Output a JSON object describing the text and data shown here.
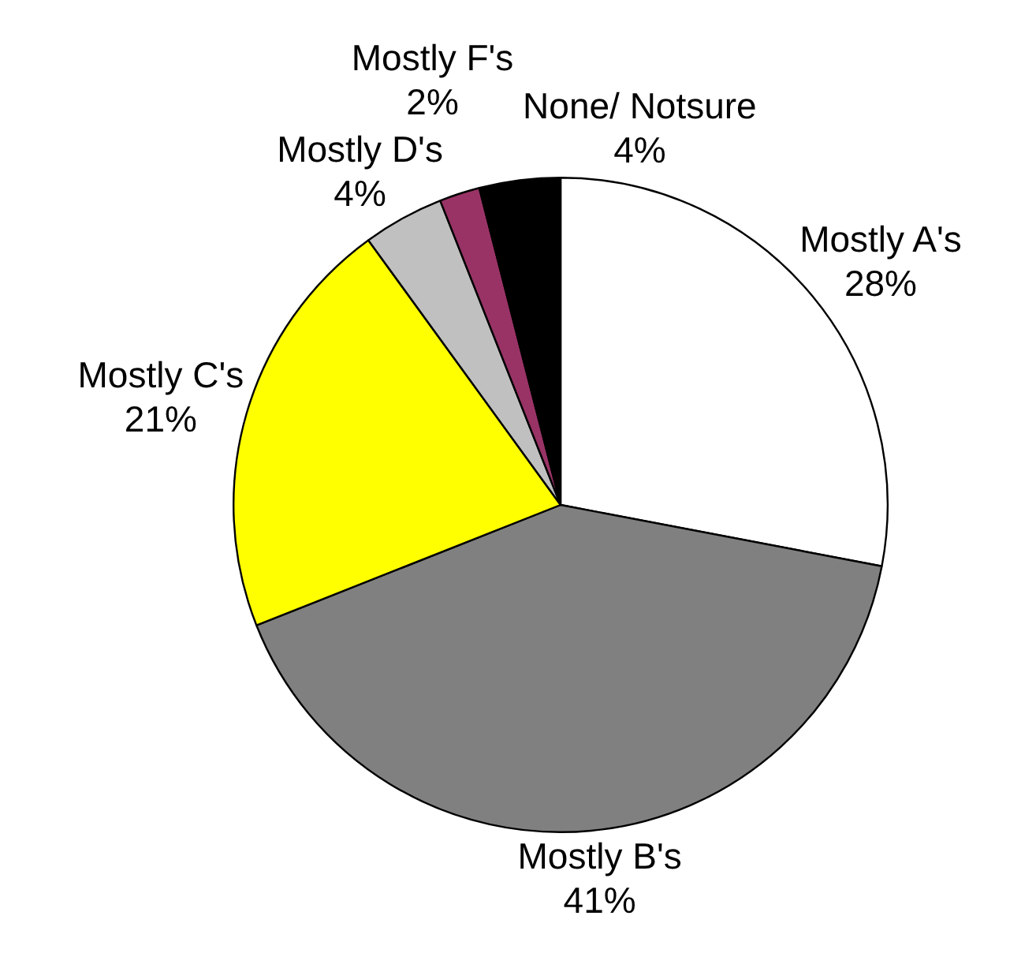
{
  "chart_data": {
    "type": "pie",
    "categories": [
      "Mostly A's",
      "Mostly B's",
      "Mostly C's",
      "Mostly D's",
      "Mostly F's",
      "None/ Notsure"
    ],
    "values": [
      28,
      41,
      21,
      4,
      2,
      4
    ],
    "colors": [
      "#ffffff",
      "#808080",
      "#ffff00",
      "#c0c0c0",
      "#993366",
      "#000000"
    ],
    "value_labels": [
      "28%",
      "41%",
      "21%",
      "4%",
      "2%",
      "4%"
    ],
    "legend": false
  }
}
